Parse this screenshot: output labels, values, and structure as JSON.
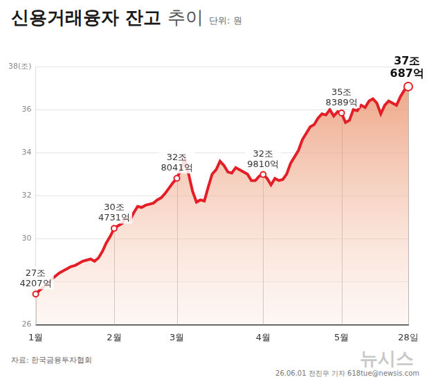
{
  "chart_data": {
    "type": "line",
    "title": "신용거래융자 잔고 추이",
    "subtitle": "단위: 원",
    "source": "자료: 한국금융투자협회",
    "credit": "26.06.01 전진우 기자 618tue@newsis.com",
    "watermark": "뉴시스",
    "color": "#e41e26",
    "marker": "circle",
    "grid": true,
    "data_labels": true,
    "categories": [
      "1월",
      null,
      null,
      null,
      null,
      null,
      null,
      null,
      null,
      null,
      null,
      null,
      null,
      null,
      null,
      null,
      null,
      null,
      null,
      null,
      "2월",
      null,
      null,
      null,
      null,
      null,
      null,
      null,
      null,
      null,
      null,
      null,
      null,
      null,
      null,
      null,
      "3월",
      null,
      null,
      null,
      null,
      null,
      null,
      null,
      null,
      null,
      null,
      null,
      null,
      null,
      null,
      null,
      null,
      null,
      null,
      null,
      null,
      null,
      "4월",
      null,
      null,
      null,
      null,
      null,
      null,
      null,
      null,
      null,
      null,
      null,
      null,
      null,
      null,
      null,
      null,
      null,
      null,
      null,
      "5월",
      null,
      null,
      null,
      null,
      null,
      null,
      null,
      null,
      null,
      null,
      null,
      null,
      null,
      null,
      null,
      null,
      "28일"
    ],
    "values": [
      27.4207,
      27.6,
      27.75,
      27.85,
      28.1,
      28.25,
      28.4,
      28.5,
      28.6,
      28.7,
      28.75,
      28.85,
      28.95,
      29.0,
      29.05,
      28.95,
      29.1,
      29.4,
      29.8,
      30.1,
      30.4731,
      30.6,
      30.7,
      30.95,
      30.85,
      31.2,
      31.5,
      31.45,
      31.55,
      31.6,
      31.65,
      31.8,
      31.9,
      32.1,
      32.35,
      32.6,
      32.8041,
      33.2,
      33.7,
      33.0,
      32.2,
      31.7,
      31.8,
      31.75,
      32.4,
      33.0,
      33.2,
      33.6,
      33.4,
      33.1,
      33.05,
      33.3,
      33.2,
      33.1,
      33.0,
      32.7,
      32.7,
      32.9,
      32.981,
      32.8,
      32.5,
      32.8,
      32.7,
      32.75,
      33.0,
      33.5,
      33.8,
      34.1,
      34.6,
      34.9,
      35.2,
      35.3,
      35.6,
      35.8,
      35.75,
      36.0,
      35.7,
      35.9,
      35.8389,
      35.4,
      35.5,
      36.0,
      35.95,
      36.2,
      36.1,
      36.4,
      36.5,
      36.3,
      35.8,
      36.2,
      36.4,
      36.3,
      36.2,
      36.6,
      36.9,
      37.0687
    ],
    "value_labels": [
      "27조 4207억",
      null,
      null,
      null,
      null,
      null,
      null,
      null,
      null,
      null,
      null,
      null,
      null,
      null,
      null,
      null,
      null,
      null,
      null,
      null,
      "30조 4731억",
      null,
      null,
      null,
      null,
      null,
      null,
      null,
      null,
      null,
      null,
      null,
      null,
      null,
      null,
      null,
      "32조 8041억",
      null,
      null,
      null,
      null,
      null,
      null,
      null,
      null,
      null,
      null,
      null,
      null,
      null,
      null,
      null,
      null,
      null,
      null,
      null,
      null,
      null,
      "32조 9810억",
      null,
      null,
      null,
      null,
      null,
      null,
      null,
      null,
      null,
      null,
      null,
      null,
      null,
      null,
      null,
      null,
      null,
      null,
      null,
      "35조 8389억",
      null,
      null,
      null,
      null,
      null,
      null,
      null,
      null,
      null,
      null,
      null,
      null,
      null,
      null,
      null,
      null,
      "37조 687억"
    ],
    "ylim": [
      26,
      38
    ],
    "yticks": [
      26,
      28,
      30,
      32,
      34,
      36,
      {
        "value": 38,
        "label": "38(조)"
      }
    ]
  }
}
